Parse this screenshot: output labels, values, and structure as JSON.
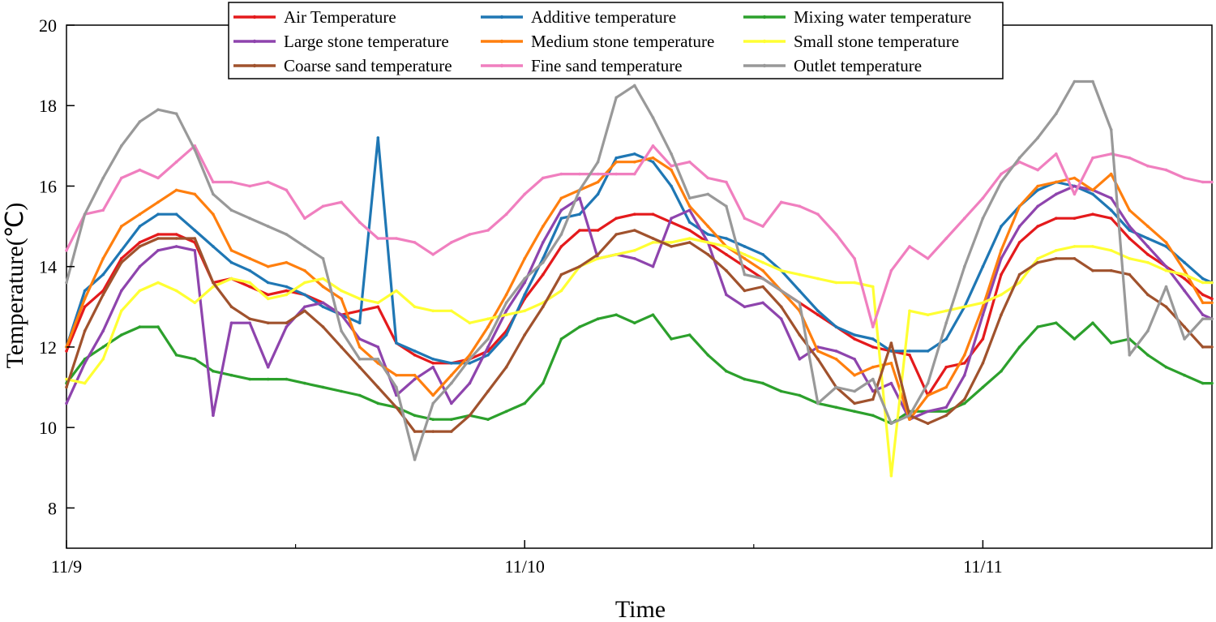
{
  "chart_data": {
    "type": "line",
    "title": "",
    "xlabel": "Time",
    "ylabel": "Temperature(℃)",
    "ylim": [
      7,
      20
    ],
    "yticks": [
      8,
      10,
      12,
      14,
      16,
      18,
      20
    ],
    "xlim": [
      0,
      2.5
    ],
    "xticks": [
      {
        "x": 0,
        "label": "11/9"
      },
      {
        "x": 1,
        "label": "11/10"
      },
      {
        "x": 2,
        "label": "11/11"
      }
    ],
    "xminor": [
      0.5,
      1.5
    ],
    "grid": false,
    "legend_position": "top",
    "x": [
      0,
      0.04,
      0.08,
      0.12,
      0.16,
      0.2,
      0.24,
      0.28,
      0.32,
      0.36,
      0.4,
      0.44,
      0.48,
      0.52,
      0.56,
      0.6,
      0.64,
      0.68,
      0.72,
      0.76,
      0.8,
      0.84,
      0.88,
      0.92,
      0.96,
      1.0,
      1.04,
      1.08,
      1.12,
      1.16,
      1.2,
      1.24,
      1.28,
      1.32,
      1.36,
      1.4,
      1.44,
      1.48,
      1.52,
      1.56,
      1.6,
      1.64,
      1.68,
      1.72,
      1.76,
      1.8,
      1.84,
      1.88,
      1.92,
      1.96,
      2.0,
      2.04,
      2.08,
      2.12,
      2.16,
      2.2,
      2.24,
      2.28,
      2.32,
      2.36,
      2.4,
      2.44,
      2.48,
      2.5
    ],
    "series": [
      {
        "name": "Air Temperature",
        "color": "#e41a1c",
        "values": [
          11.9,
          13.0,
          13.4,
          14.2,
          14.6,
          14.8,
          14.8,
          14.6,
          13.6,
          13.7,
          13.5,
          13.3,
          13.4,
          13.3,
          13.1,
          12.8,
          12.9,
          13.0,
          12.1,
          11.8,
          11.6,
          11.6,
          11.7,
          11.9,
          12.4,
          13.2,
          13.8,
          14.5,
          14.9,
          14.9,
          15.2,
          15.3,
          15.3,
          15.1,
          14.9,
          14.6,
          14.3,
          14.0,
          13.7,
          13.4,
          13.1,
          12.8,
          12.5,
          12.2,
          12.0,
          11.9,
          11.8,
          10.8,
          11.5,
          11.6,
          12.2,
          13.8,
          14.6,
          15.0,
          15.2,
          15.2,
          15.3,
          15.2,
          14.7,
          14.3,
          14.0,
          13.7,
          13.3,
          13.2
        ]
      },
      {
        "name": "Additive temperature",
        "color": "#1f77b4",
        "values": [
          12.0,
          13.4,
          13.8,
          14.4,
          15.0,
          15.3,
          15.3,
          14.9,
          14.5,
          14.1,
          13.9,
          13.6,
          13.5,
          13.3,
          13.0,
          12.8,
          12.6,
          17.2,
          12.1,
          11.9,
          11.7,
          11.6,
          11.6,
          11.8,
          12.3,
          13.3,
          14.2,
          15.2,
          15.3,
          15.8,
          16.7,
          16.8,
          16.6,
          16.0,
          15.1,
          14.8,
          14.7,
          14.5,
          14.3,
          13.9,
          13.4,
          12.9,
          12.5,
          12.3,
          12.2,
          11.9,
          11.9,
          11.9,
          12.2,
          13.0,
          14.0,
          15.0,
          15.5,
          15.9,
          16.1,
          16.0,
          15.8,
          15.4,
          14.9,
          14.7,
          14.5,
          14.1,
          13.7,
          13.6
        ]
      },
      {
        "name": "Mixing water temperature",
        "color": "#2ca02c",
        "values": [
          11.1,
          11.7,
          12.0,
          12.3,
          12.5,
          12.5,
          11.8,
          11.7,
          11.4,
          11.3,
          11.2,
          11.2,
          11.2,
          11.1,
          11.0,
          10.9,
          10.8,
          10.6,
          10.5,
          10.3,
          10.2,
          10.2,
          10.3,
          10.2,
          10.4,
          10.6,
          11.1,
          12.2,
          12.5,
          12.7,
          12.8,
          12.6,
          12.8,
          12.2,
          12.3,
          11.8,
          11.4,
          11.2,
          11.1,
          10.9,
          10.8,
          10.6,
          10.5,
          10.4,
          10.3,
          10.1,
          10.4,
          10.4,
          10.4,
          10.6,
          11.0,
          11.4,
          12.0,
          12.5,
          12.6,
          12.2,
          12.6,
          12.1,
          12.2,
          11.8,
          11.5,
          11.3,
          11.1,
          11.1
        ]
      },
      {
        "name": "Large stone temperature",
        "color": "#8e44ad",
        "values": [
          10.6,
          11.6,
          12.4,
          13.4,
          14.0,
          14.4,
          14.5,
          14.4,
          10.3,
          12.6,
          12.6,
          11.5,
          12.5,
          13.0,
          13.1,
          12.8,
          12.2,
          12.0,
          10.8,
          11.2,
          11.5,
          10.6,
          11.1,
          12.0,
          12.9,
          13.6,
          14.6,
          15.4,
          15.7,
          14.2,
          14.3,
          14.2,
          14.0,
          15.2,
          15.4,
          14.6,
          13.3,
          13.0,
          13.1,
          12.7,
          11.7,
          12.0,
          11.9,
          11.7,
          10.9,
          11.1,
          10.2,
          10.4,
          10.5,
          11.3,
          12.8,
          14.2,
          15.0,
          15.5,
          15.8,
          16.0,
          15.9,
          15.7,
          15.0,
          14.5,
          14.0,
          13.4,
          12.8,
          12.7
        ]
      },
      {
        "name": "Medium stone temperature",
        "color": "#ff7f0e",
        "values": [
          12.0,
          13.2,
          14.2,
          15.0,
          15.3,
          15.6,
          15.9,
          15.8,
          15.3,
          14.4,
          14.2,
          14.0,
          14.1,
          13.9,
          13.5,
          13.2,
          12.0,
          11.6,
          11.3,
          11.3,
          10.8,
          11.3,
          11.8,
          12.5,
          13.3,
          14.2,
          15.0,
          15.7,
          15.9,
          16.1,
          16.6,
          16.6,
          16.7,
          16.4,
          15.5,
          15.0,
          14.5,
          14.2,
          13.9,
          13.4,
          12.9,
          11.9,
          11.7,
          11.3,
          11.5,
          11.6,
          10.2,
          10.8,
          11.0,
          11.8,
          13.0,
          14.4,
          15.5,
          16.0,
          16.1,
          16.2,
          15.9,
          16.3,
          15.4,
          15.0,
          14.6,
          13.9,
          13.1,
          13.1
        ]
      },
      {
        "name": "Small stone temperature",
        "color": "#ffff33",
        "values": [
          11.2,
          11.1,
          11.7,
          12.9,
          13.4,
          13.6,
          13.4,
          13.1,
          13.5,
          13.7,
          13.6,
          13.2,
          13.3,
          13.6,
          13.7,
          13.4,
          13.2,
          13.1,
          13.4,
          13.0,
          12.9,
          12.9,
          12.6,
          12.7,
          12.8,
          12.9,
          13.1,
          13.4,
          14.0,
          14.2,
          14.3,
          14.4,
          14.6,
          14.6,
          14.7,
          14.6,
          14.5,
          14.3,
          14.1,
          13.9,
          13.8,
          13.7,
          13.6,
          13.6,
          13.5,
          8.8,
          12.9,
          12.8,
          12.9,
          13.0,
          13.1,
          13.3,
          13.6,
          14.2,
          14.4,
          14.5,
          14.5,
          14.4,
          14.2,
          14.1,
          13.9,
          13.8,
          13.6,
          13.6
        ]
      },
      {
        "name": "Coarse sand temperature",
        "color": "#a0522d",
        "values": [
          11.0,
          12.4,
          13.3,
          14.1,
          14.5,
          14.7,
          14.7,
          14.7,
          13.6,
          13.0,
          12.7,
          12.6,
          12.6,
          12.9,
          12.5,
          12.0,
          11.5,
          11.0,
          10.5,
          9.9,
          9.9,
          9.9,
          10.3,
          10.9,
          11.5,
          12.3,
          13.0,
          13.8,
          14.0,
          14.3,
          14.8,
          14.9,
          14.7,
          14.5,
          14.6,
          14.3,
          13.9,
          13.4,
          13.5,
          13.0,
          12.3,
          11.7,
          11.0,
          10.6,
          10.7,
          12.1,
          10.3,
          10.1,
          10.3,
          10.7,
          11.6,
          12.8,
          13.8,
          14.1,
          14.2,
          14.2,
          13.9,
          13.9,
          13.8,
          13.3,
          13.0,
          12.5,
          12.0,
          12.0
        ]
      },
      {
        "name": "Fine sand temperature",
        "color": "#f07fbf",
        "values": [
          14.4,
          15.3,
          15.4,
          16.2,
          16.4,
          16.2,
          16.6,
          17.0,
          16.1,
          16.1,
          16.0,
          16.1,
          15.9,
          15.2,
          15.5,
          15.6,
          15.1,
          14.7,
          14.7,
          14.6,
          14.3,
          14.6,
          14.8,
          14.9,
          15.3,
          15.8,
          16.2,
          16.3,
          16.3,
          16.3,
          16.3,
          16.3,
          17.0,
          16.5,
          16.6,
          16.2,
          16.1,
          15.2,
          15.0,
          15.6,
          15.5,
          15.3,
          14.8,
          14.2,
          12.5,
          13.9,
          14.5,
          14.2,
          14.7,
          15.2,
          15.7,
          16.3,
          16.6,
          16.4,
          16.8,
          15.8,
          16.7,
          16.8,
          16.7,
          16.5,
          16.4,
          16.2,
          16.1,
          16.1
        ]
      },
      {
        "name": "Outlet temperature",
        "color": "#999999",
        "values": [
          13.6,
          15.3,
          16.2,
          17.0,
          17.6,
          17.9,
          17.8,
          16.9,
          15.8,
          15.4,
          15.2,
          15.0,
          14.8,
          14.5,
          14.2,
          12.4,
          11.7,
          11.7,
          11.0,
          9.2,
          10.6,
          11.1,
          11.7,
          12.2,
          13.1,
          13.7,
          14.1,
          14.8,
          15.9,
          16.6,
          18.2,
          18.5,
          17.7,
          16.8,
          15.7,
          15.8,
          15.5,
          13.8,
          13.7,
          13.4,
          13.1,
          10.6,
          11.0,
          10.9,
          11.2,
          10.1,
          10.3,
          11.1,
          12.6,
          14.0,
          15.2,
          16.1,
          16.7,
          17.2,
          17.8,
          18.6,
          18.6,
          17.4,
          11.8,
          12.4,
          13.5,
          12.2,
          12.7,
          12.7
        ]
      }
    ]
  }
}
